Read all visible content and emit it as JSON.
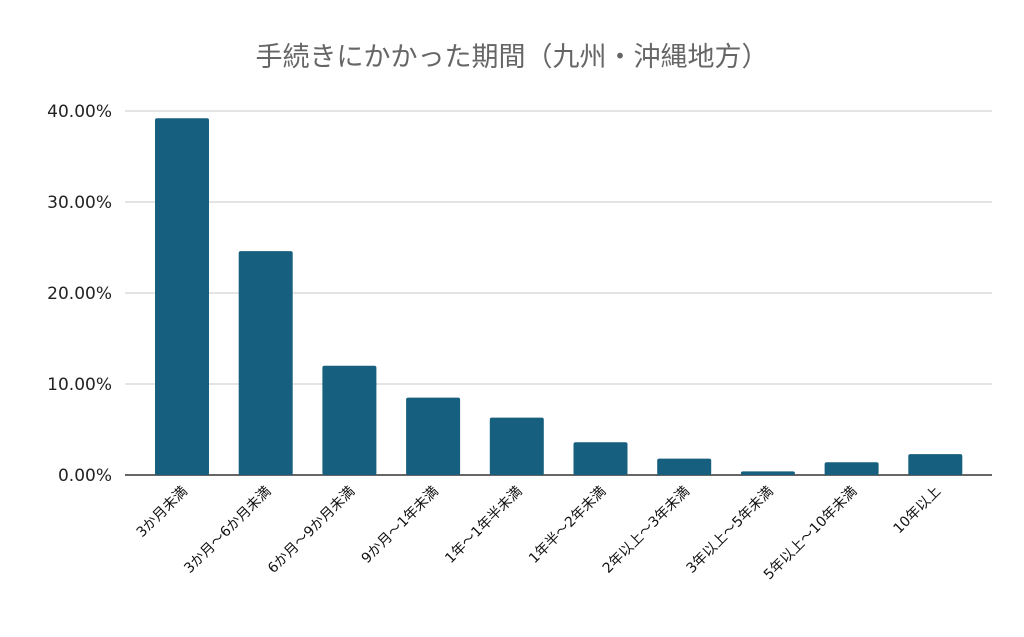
{
  "chart_data": {
    "type": "bar",
    "title": "手続きにかかった期間（九州・沖縄地方）",
    "xlabel": "",
    "ylabel": "",
    "ylim": [
      0,
      40
    ],
    "yticks": [
      0,
      10,
      20,
      30,
      40
    ],
    "ytick_labels": [
      "0.00%",
      "10.00%",
      "20.00%",
      "30.00%",
      "40.00%"
    ],
    "grid": true,
    "legend": "none",
    "bar_color": "#175f7f",
    "categories": [
      "3か月未満",
      "3か月～6か月未満",
      "6か月～9か月未満",
      "9か月～1年未満",
      "1年～1年半未満",
      "1年半～2年未満",
      "2年以上～3年未満",
      "3年以上～5年未満",
      "5年以上～10年未満",
      "10年以上"
    ],
    "values": [
      39.2,
      24.6,
      12.0,
      8.5,
      6.3,
      3.6,
      1.8,
      0.4,
      1.4,
      2.3
    ]
  }
}
